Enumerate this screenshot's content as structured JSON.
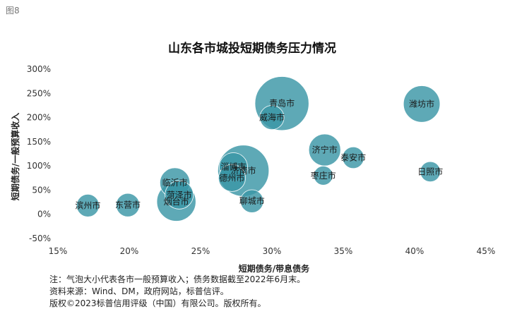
{
  "figure_label": "图8",
  "chart_data": {
    "type": "scatter",
    "subtype": "bubble",
    "title": "山东各市城投短期债务压力情况",
    "xlabel": "短期债务/带息债务",
    "ylabel": "短期债务/一般预算收入",
    "xlim": [
      15,
      45
    ],
    "ylim": [
      -50,
      300
    ],
    "x_ticks": [
      "15%",
      "20%",
      "25%",
      "30%",
      "35%",
      "40%",
      "45%"
    ],
    "y_ticks": [
      "-50%",
      "0%",
      "50%",
      "100%",
      "150%",
      "200%",
      "250%",
      "300%"
    ],
    "grid": false,
    "bubble_color": "#3a96a6",
    "points": [
      {
        "label": "滨州市",
        "x": 17.1,
        "y": 18,
        "size": 0.35
      },
      {
        "label": "东营市",
        "x": 19.9,
        "y": 19,
        "size": 0.38
      },
      {
        "label": "临沂市",
        "x": 23.2,
        "y": 65,
        "size": 0.62
      },
      {
        "label": "菏泽市",
        "x": 23.5,
        "y": 40,
        "size": 0.55
      },
      {
        "label": "烟台市",
        "x": 23.3,
        "y": 26,
        "size": 1.05
      },
      {
        "label": "淄博市",
        "x": 27.3,
        "y": 98,
        "size": 0.55
      },
      {
        "label": "济南市",
        "x": 28.0,
        "y": 90,
        "size": 1.8
      },
      {
        "label": "德州市",
        "x": 27.2,
        "y": 75,
        "size": 0.5
      },
      {
        "label": "聊城市",
        "x": 28.6,
        "y": 27,
        "size": 0.36
      },
      {
        "label": "青岛市",
        "x": 30.7,
        "y": 229,
        "size": 2.0
      },
      {
        "label": "威海市",
        "x": 30.0,
        "y": 200,
        "size": 0.4
      },
      {
        "label": "济宁市",
        "x": 33.7,
        "y": 133,
        "size": 0.7
      },
      {
        "label": "枣庄市",
        "x": 33.6,
        "y": 80,
        "size": 0.25
      },
      {
        "label": "泰安市",
        "x": 35.7,
        "y": 117,
        "size": 0.32
      },
      {
        "label": "潍坊市",
        "x": 40.5,
        "y": 228,
        "size": 0.92
      },
      {
        "label": "日照市",
        "x": 41.1,
        "y": 88,
        "size": 0.28
      }
    ]
  },
  "notes": [
    "注：气泡大小代表各市一般预算收入；债务数据截至2022年6月末。",
    "资料来源：Wind、DM，政府网站，标普信评。",
    "版权©2023标普信用评级（中国）有限公司。版权所有。"
  ]
}
